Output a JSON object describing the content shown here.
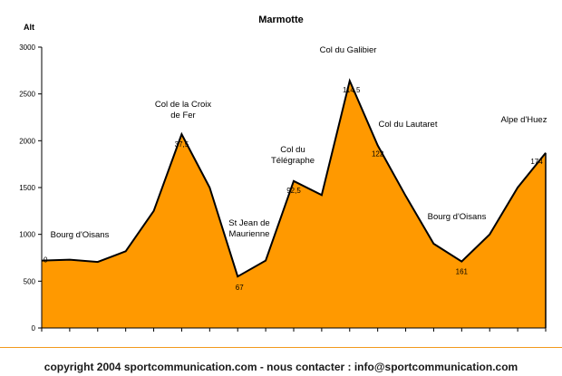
{
  "colors": {
    "fill": "#FF9900",
    "stroke": "#000000",
    "footer_rule": "#F29A1D"
  },
  "chart_data": {
    "type": "area",
    "title": "Marmotte",
    "ylabel": "Alt",
    "ylim": [
      0,
      3000
    ],
    "yticks": [
      "0",
      "500",
      "1000",
      "1500",
      "2000",
      "2500",
      "3000"
    ],
    "grid": false,
    "series": [
      {
        "values": [
          720,
          730,
          705,
          820,
          1250,
          2070,
          1500,
          550,
          720,
          1570,
          1420,
          2640,
          1950,
          1410,
          900,
          710,
          1000,
          1500,
          1870
        ]
      }
    ],
    "km_labels": [
      {
        "index": 0,
        "text": "0"
      },
      {
        "index": 5,
        "text": "37,5"
      },
      {
        "index": 7,
        "text": "67"
      },
      {
        "index": 9,
        "text": "92,5"
      },
      {
        "index": 11,
        "text": "114,5"
      },
      {
        "index": 12,
        "text": "122"
      },
      {
        "index": 15,
        "text": "161"
      },
      {
        "index": 18,
        "text": "174"
      }
    ],
    "annotations": [
      {
        "text": "Bourg d'Oisans"
      },
      {
        "text": "Col de la Croix\nde Fer"
      },
      {
        "text": "St Jean de\nMaurienne"
      },
      {
        "text": "Col du\nTélégraphe"
      },
      {
        "text": "Col du Galibier"
      },
      {
        "text": "Col du Lautaret"
      },
      {
        "text": "Bourg d'Oisans"
      },
      {
        "text": "Alpe d'Huez"
      }
    ]
  },
  "footer": {
    "text": "copyright 2004 sportcommunication.com - nous contacter : info@sportcommunication.com"
  }
}
